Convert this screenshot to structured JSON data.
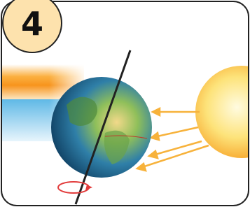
{
  "panel": {
    "number": "4"
  }
}
